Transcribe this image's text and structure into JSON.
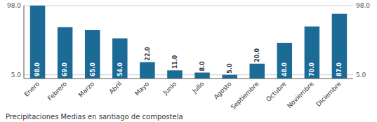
{
  "chart_data": {
    "type": "bar",
    "title": "Precipitaciones Medias en santiago de compostela",
    "categories": [
      "Enero",
      "Febrero",
      "Marzo",
      "Abril",
      "Mayo",
      "Junio",
      "Julio",
      "Agosto",
      "Septiembre",
      "Octubre",
      "Noviembre",
      "Diciembre"
    ],
    "values": [
      98.0,
      69.0,
      65.0,
      54.0,
      22.0,
      11.0,
      8.0,
      5.0,
      20.0,
      48.0,
      70.0,
      87.0
    ],
    "value_labels": [
      "98.0",
      "69.0",
      "65.0",
      "54.0",
      "22.0",
      "11.0",
      "8.0",
      "5.0",
      "20.0",
      "48.0",
      "70.0",
      "87.0"
    ],
    "color": "#1b6b96",
    "ylim": [
      0,
      98.0
    ],
    "yticks": [
      {
        "value": 5.0,
        "label": "5.0"
      },
      {
        "value": 98.0,
        "label": "98.0"
      }
    ],
    "grid": true,
    "data_labels": true
  }
}
